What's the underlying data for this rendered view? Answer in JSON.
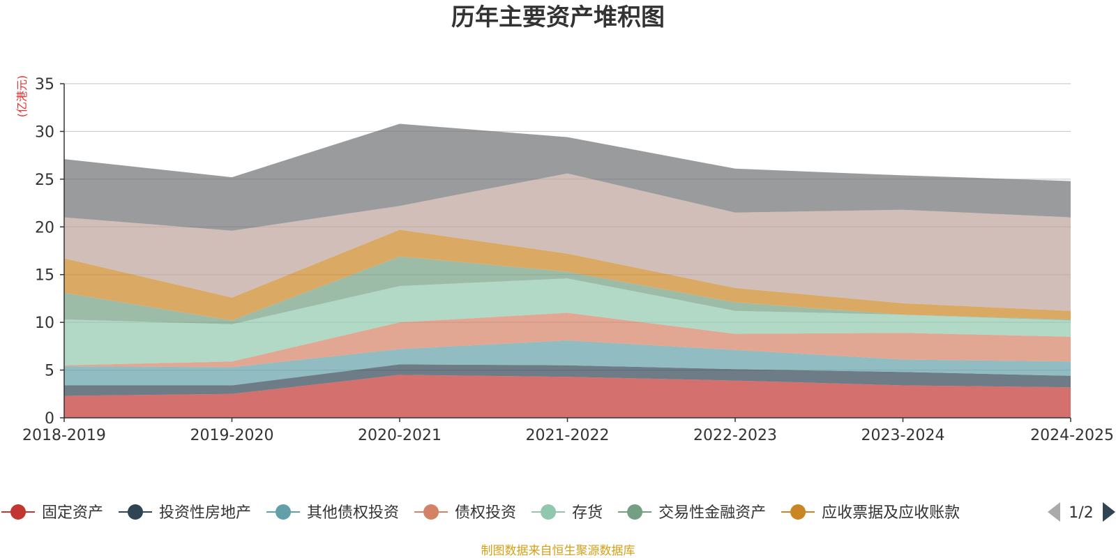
{
  "chart_data": {
    "type": "area",
    "stacked": true,
    "title": "历年主要资产堆积图",
    "ylabel": "(亿港元)",
    "ylim": [
      0,
      35
    ],
    "yticks": [
      0,
      5,
      10,
      15,
      20,
      25,
      30,
      35
    ],
    "categories": [
      "2018-2019",
      "2019-2020",
      "2020-2021",
      "2021-2022",
      "2022-2023",
      "2023-2024",
      "2024-2025"
    ],
    "series": [
      {
        "name": "固定资产",
        "color": "#c23531",
        "legend": true,
        "values": [
          2.3,
          2.5,
          4.5,
          4.3,
          3.9,
          3.4,
          3.2
        ]
      },
      {
        "name": "投资性房地产",
        "color": "#2f4554",
        "legend": true,
        "values": [
          1.1,
          0.9,
          1.1,
          1.2,
          1.2,
          1.4,
          1.2
        ]
      },
      {
        "name": "其他债权投资",
        "color": "#61a0a8",
        "legend": true,
        "values": [
          2.0,
          1.9,
          1.6,
          2.6,
          2.0,
          1.3,
          1.5
        ]
      },
      {
        "name": "债权投资",
        "color": "#d48265",
        "legend": true,
        "values": [
          0.1,
          0.6,
          2.8,
          2.9,
          1.7,
          2.8,
          2.6
        ]
      },
      {
        "name": "存货",
        "color": "#91c7ae",
        "legend": true,
        "values": [
          4.8,
          3.9,
          3.8,
          3.6,
          2.4,
          1.9,
          1.7
        ]
      },
      {
        "name": "交易性金融资产",
        "color": "#749f83",
        "legend": true,
        "values": [
          2.8,
          0.4,
          3.1,
          0.7,
          0.9,
          0.0,
          0.1
        ]
      },
      {
        "name": "应收票据及应收账款",
        "color": "#ca8622",
        "legend": true,
        "values": [
          3.6,
          2.4,
          2.8,
          1.9,
          1.5,
          1.2,
          0.9
        ]
      },
      {
        "name": "",
        "color": "#bda29a",
        "legend": false,
        "values": [
          4.3,
          7.0,
          2.5,
          8.4,
          7.9,
          9.8,
          9.8
        ]
      },
      {
        "name": "",
        "color": "#6e7074",
        "legend": false,
        "values": [
          6.1,
          5.6,
          8.6,
          3.8,
          4.6,
          3.6,
          3.8
        ]
      }
    ],
    "legend": {
      "position": "bottom",
      "page": "1/2"
    },
    "source_note": "制图数据来自恒生聚源数据库"
  }
}
